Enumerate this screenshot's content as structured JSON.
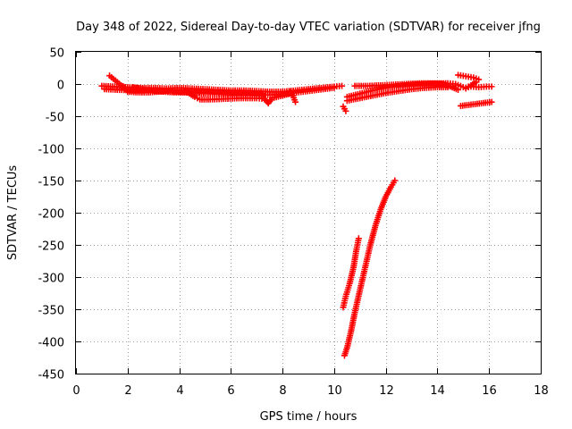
{
  "chart_data": {
    "type": "scatter",
    "title": "Day 348 of 2022, Sidereal Day-to-day VTEC variation (SDTVAR) for receiver jfng",
    "xlabel": "GPS time / hours",
    "ylabel": "SDTVAR / TECUs",
    "xlim": [
      0,
      18
    ],
    "ylim": [
      -450,
      50
    ],
    "xticks": [
      0,
      2,
      4,
      6,
      8,
      10,
      12,
      14,
      16,
      18
    ],
    "yticks": [
      50,
      0,
      -50,
      -100,
      -150,
      -200,
      -250,
      -300,
      -350,
      -400,
      -450
    ],
    "grid": true,
    "marker": "+",
    "color": "#ff0000",
    "series": [
      {
        "segments": [
          [
            [
              1.0,
              -3
            ],
            [
              1.5,
              -4
            ],
            [
              2.0,
              -5
            ],
            [
              2.5,
              -6
            ],
            [
              3.0,
              -6
            ],
            [
              3.5,
              -7
            ],
            [
              4.0,
              -6
            ],
            [
              4.5,
              -7
            ],
            [
              5.0,
              -8
            ],
            [
              5.5,
              -9
            ],
            [
              6.0,
              -10
            ],
            [
              6.5,
              -10
            ],
            [
              7.0,
              -11
            ],
            [
              7.5,
              -12
            ],
            [
              8.0,
              -12
            ],
            [
              8.5,
              -10
            ],
            [
              9.0,
              -8
            ],
            [
              9.5,
              -6
            ],
            [
              10.0,
              -4
            ],
            [
              10.3,
              -3
            ]
          ],
          [
            [
              1.1,
              -8
            ],
            [
              1.6,
              -9
            ],
            [
              2.2,
              -10
            ],
            [
              2.8,
              -11
            ],
            [
              3.4,
              -11
            ],
            [
              4.0,
              -12
            ],
            [
              4.6,
              -14
            ],
            [
              5.2,
              -15
            ],
            [
              5.8,
              -16
            ],
            [
              6.4,
              -17
            ],
            [
              7.0,
              -17
            ],
            [
              7.6,
              -17
            ],
            [
              8.2,
              -15
            ],
            [
              8.8,
              -12
            ],
            [
              9.4,
              -9
            ],
            [
              10.0,
              -6
            ]
          ],
          [
            [
              1.3,
              13
            ],
            [
              1.45,
              8
            ],
            [
              1.6,
              3
            ],
            [
              1.75,
              -2
            ],
            [
              1.9,
              -5
            ]
          ],
          [
            [
              2.2,
              -5
            ],
            [
              2.6,
              -8
            ],
            [
              3.0,
              -10
            ],
            [
              3.4,
              -12
            ],
            [
              3.8,
              -13
            ],
            [
              4.2,
              -13
            ],
            [
              4.7,
              -13
            ],
            [
              5.2,
              -13
            ],
            [
              5.7,
              -14
            ],
            [
              6.2,
              -14
            ],
            [
              6.7,
              -14
            ],
            [
              7.2,
              -15
            ]
          ],
          [
            [
              2.0,
              -12
            ],
            [
              2.4,
              -13
            ],
            [
              2.8,
              -13
            ],
            [
              3.2,
              -12
            ],
            [
              3.6,
              -10
            ]
          ],
          [
            [
              4.4,
              -15
            ],
            [
              4.6,
              -20
            ],
            [
              4.8,
              -24
            ],
            [
              5.2,
              -24
            ],
            [
              5.8,
              -23
            ],
            [
              6.4,
              -22
            ],
            [
              7.0,
              -22
            ],
            [
              7.3,
              -23
            ],
            [
              7.45,
              -30
            ],
            [
              7.6,
              -22
            ],
            [
              8.0,
              -18
            ],
            [
              8.4,
              -14
            ]
          ],
          [
            [
              4.2,
              -12
            ],
            [
              4.4,
              -14
            ],
            [
              4.6,
              -17
            ]
          ],
          [
            [
              8.3,
              -12
            ],
            [
              8.4,
              -18
            ],
            [
              8.5,
              -28
            ]
          ],
          [
            [
              10.5,
              -20
            ],
            [
              11.0,
              -15
            ],
            [
              11.5,
              -10
            ],
            [
              12.0,
              -6
            ],
            [
              12.5,
              -3
            ],
            [
              13.0,
              -1
            ],
            [
              13.5,
              0
            ],
            [
              14.0,
              1
            ],
            [
              14.4,
              1
            ],
            [
              14.7,
              0
            ],
            [
              14.9,
              -3
            ],
            [
              15.1,
              -7
            ]
          ],
          [
            [
              10.5,
              -26
            ],
            [
              11.0,
              -22
            ],
            [
              11.5,
              -18
            ],
            [
              12.0,
              -14
            ],
            [
              12.5,
              -11
            ],
            [
              13.0,
              -8
            ],
            [
              13.5,
              -6
            ],
            [
              14.0,
              -5
            ],
            [
              14.4,
              -5
            ]
          ],
          [
            [
              10.8,
              -3
            ],
            [
              11.3,
              -3
            ],
            [
              11.8,
              -2
            ],
            [
              12.3,
              -1
            ],
            [
              12.8,
              0
            ],
            [
              13.3,
              1
            ],
            [
              13.8,
              1
            ],
            [
              14.2,
              0
            ],
            [
              14.5,
              -4
            ],
            [
              14.8,
              -9
            ]
          ],
          [
            [
              14.8,
              14
            ],
            [
              15.1,
              12
            ],
            [
              15.4,
              10
            ],
            [
              15.6,
              7
            ],
            [
              15.5,
              3
            ],
            [
              15.3,
              -2
            ],
            [
              15.1,
              -6
            ],
            [
              15.3,
              -4
            ],
            [
              15.6,
              -5
            ],
            [
              15.9,
              -4
            ],
            [
              16.1,
              -4
            ]
          ],
          [
            [
              14.9,
              -34
            ],
            [
              15.3,
              -32
            ],
            [
              15.7,
              -30
            ],
            [
              16.1,
              -28
            ]
          ],
          [
            [
              10.35,
              -35
            ],
            [
              10.45,
              -42
            ]
          ],
          [
            [
              12.35,
              -150
            ],
            [
              12.2,
              -160
            ],
            [
              12.0,
              -175
            ],
            [
              11.8,
              -195
            ],
            [
              11.6,
              -220
            ],
            [
              11.4,
              -250
            ],
            [
              11.2,
              -285
            ],
            [
              11.0,
              -320
            ],
            [
              10.8,
              -355
            ],
            [
              10.65,
              -385
            ],
            [
              10.5,
              -410
            ],
            [
              10.4,
              -422
            ]
          ],
          [
            [
              10.95,
              -240
            ],
            [
              10.85,
              -260
            ],
            [
              10.75,
              -285
            ],
            [
              10.6,
              -310
            ],
            [
              10.45,
              -330
            ],
            [
              10.35,
              -347
            ]
          ]
        ]
      }
    ]
  }
}
